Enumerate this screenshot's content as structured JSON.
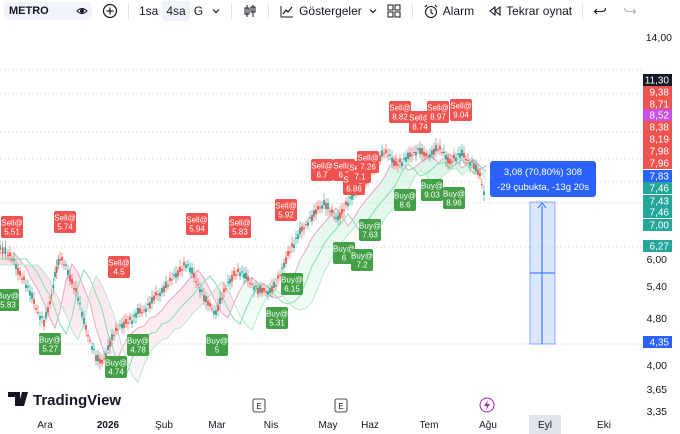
{
  "toolbar": {
    "symbol": "METRO",
    "interval_1": "1sa",
    "interval_2": "4sa",
    "interval_3": "G",
    "indicators_label": "Göstergeler",
    "alarm_label": "Alarm",
    "replay_label": "Tekrar oynat"
  },
  "colors": {
    "up": "#26a69a",
    "down": "#ef5350",
    "buy_tag": "#43a047",
    "sell_tag": "#ef5350",
    "info_box": "#2962ff",
    "current_price_tag": "#2962ff",
    "magenta_tag": "#c850e6",
    "ma_green": "#7ee2a8",
    "ma_pink": "#e7a6c8"
  },
  "price_axis": {
    "ticks": [
      "14,00",
      "6,00",
      "5,40",
      "4,80",
      "4,00",
      "3,65",
      "3,35"
    ],
    "tags": [
      {
        "value": "11,30",
        "color": "#131722"
      },
      {
        "value": "9,38",
        "color": "#ef5350"
      },
      {
        "value": "8,71",
        "color": "#ef5350"
      },
      {
        "value": "8,52",
        "color": "#c850e6"
      },
      {
        "value": "8,38",
        "color": "#ef5350"
      },
      {
        "value": "8,19",
        "color": "#ef5350"
      },
      {
        "value": "7,98",
        "color": "#ef5350"
      },
      {
        "value": "7,96",
        "color": "#ef5350"
      },
      {
        "value": "7,83",
        "color": "#2962ff"
      },
      {
        "value": "7,46",
        "color": "#26a69a"
      },
      {
        "value": "7,43",
        "color": "#26a69a"
      },
      {
        "value": "7,46",
        "color": "#26a69a"
      },
      {
        "value": "7,00",
        "color": "#26a69a"
      },
      {
        "value": "6,27",
        "color": "#26a69a"
      },
      {
        "value": "4,35",
        "color": "#2962ff"
      }
    ]
  },
  "time_axis": {
    "labels": [
      "Ara",
      "2026",
      "Şub",
      "Mar",
      "Nis",
      "May",
      "Haz",
      "Tem",
      "Ağu",
      "Eyl",
      "Eki"
    ],
    "event_markers": [
      "E",
      "E"
    ]
  },
  "measurement": {
    "line1": "3,08 (70,80%) 308",
    "line2": "-29 çubukta, -13g 20s"
  },
  "signals": {
    "sell": [
      {
        "label": "Sell@",
        "value": "5.51"
      },
      {
        "label": "Sell@",
        "value": "5.74"
      },
      {
        "label": "Sell@",
        "value": "4.5"
      },
      {
        "label": "Sell@",
        "value": "5.94"
      },
      {
        "label": "Sell@",
        "value": "5.83"
      },
      {
        "label": "Sell@",
        "value": "5.92"
      },
      {
        "label": "Sell@",
        "value": "6.7"
      },
      {
        "label": "Sell@",
        "value": "6.5"
      },
      {
        "label": "Sell@",
        "value": "6.86"
      },
      {
        "label": "Sell@",
        "value": "7.1"
      },
      {
        "label": "Sell@",
        "value": "7.26"
      },
      {
        "label": "Sell@",
        "value": "8.82"
      },
      {
        "label": "Sell@",
        "value": "8.74"
      },
      {
        "label": "Sell@",
        "value": "8.97"
      },
      {
        "label": "Sell@",
        "value": "9.04"
      }
    ],
    "buy": [
      {
        "label": "Buy@",
        "value": "5.83"
      },
      {
        "label": "Buy@",
        "value": "5.27"
      },
      {
        "label": "Buy@",
        "value": "4.74"
      },
      {
        "label": "Buy@",
        "value": "4.78"
      },
      {
        "label": "Buy@",
        "value": "5"
      },
      {
        "label": "Buy@",
        "value": "5.31"
      },
      {
        "label": "Buy@",
        "value": "6.15"
      },
      {
        "label": "Buy@",
        "value": "6"
      },
      {
        "label": "Buy@",
        "value": "7.2"
      },
      {
        "label": "Buy@",
        "value": "7.63"
      },
      {
        "label": "Buy@",
        "value": "8.6"
      },
      {
        "label": "Buy@",
        "value": "9.03"
      },
      {
        "label": "Buy@",
        "value": "8.96"
      }
    ]
  },
  "brand": {
    "logo_text": "TradingView"
  }
}
